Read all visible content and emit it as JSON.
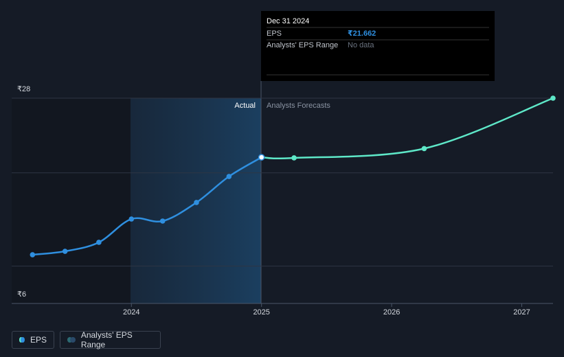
{
  "chart_data": {
    "type": "line",
    "x": [
      2023.24,
      2023.49,
      2023.75,
      2024.0,
      2024.24,
      2024.5,
      2024.75,
      2025.0
    ],
    "series": [
      {
        "name": "EPS",
        "color": "#2f8fdf",
        "x": [
          2023.24,
          2023.49,
          2023.75,
          2024.0,
          2024.24,
          2024.5,
          2024.75,
          2025.0
        ],
        "values": [
          11.22,
          11.59,
          12.55,
          15.05,
          14.83,
          16.82,
          19.61,
          21.662
        ]
      },
      {
        "name": "Analysts Forecasts",
        "color": "#5ee8c8",
        "x": [
          2025.0,
          2025.25,
          2026.25,
          2027.24
        ],
        "values": [
          21.662,
          21.6,
          22.6,
          28
        ]
      }
    ],
    "section_labels": [
      "Actual",
      "Analysts Forecasts"
    ],
    "legend": [
      "EPS",
      "Analysts' EPS Range"
    ],
    "xlim": [
      2023.08,
      2027.24
    ],
    "xticks": [
      2024,
      2025,
      2026,
      2027
    ],
    "ylim": [
      6,
      28
    ],
    "yticks": [
      {
        "value": 28,
        "label": "₹28"
      },
      {
        "value": 6,
        "label": "₹6"
      }
    ],
    "ygrid": [
      28,
      20,
      10
    ],
    "tooltip": {
      "title": "Dec 31 2024",
      "rows": [
        [
          "EPS",
          "₹21.662"
        ],
        [
          "Analysts' EPS Range",
          "No data"
        ]
      ]
    }
  }
}
